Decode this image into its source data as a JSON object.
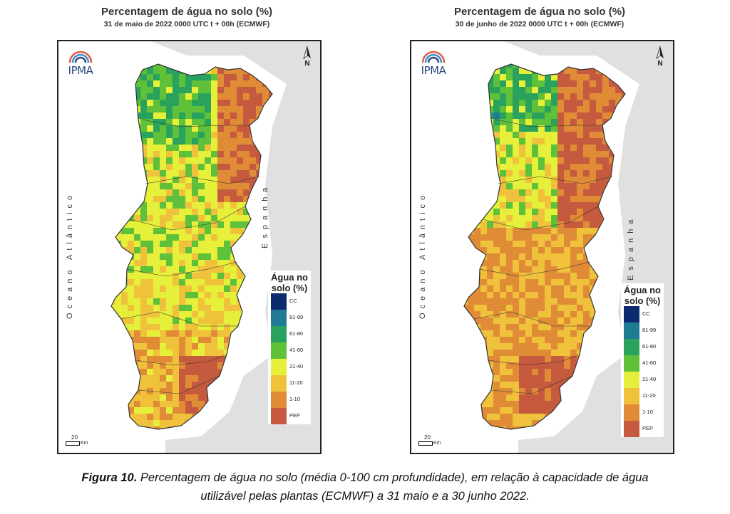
{
  "colors": {
    "cc": "#0c2a6e",
    "c81_99": "#1f7a93",
    "c61_80": "#28a25d",
    "c41_60": "#5fc03a",
    "c21_40": "#e6f03a",
    "c11_20": "#f0c23c",
    "c1_10": "#e08c36",
    "pep": "#c65a3e",
    "spain_land": "#e0e0e0",
    "ocean": "#ffffff"
  },
  "panels": [
    {
      "title": "Percentagem de água no solo (%)",
      "subtitle": "31 de maio de 2022 0000 UTC t + 00h (ECMWF)",
      "logo_text": "IPMA",
      "north": "N",
      "ocean_label": "Oceano Atlântico",
      "spain_label": "Espanha",
      "scale_num": "20",
      "scale_unit": "Km",
      "map_state": "maio"
    },
    {
      "title": "Percentagem de água no solo (%)",
      "subtitle": "30 de junho de 2022 0000 UTC t + 00h (ECMWF)",
      "logo_text": "IPMA",
      "north": "N",
      "ocean_label": "Oceano Atlântico",
      "spain_label": "Espanha",
      "scale_num": "20",
      "scale_unit": "Km",
      "map_state": "junho"
    }
  ],
  "legend": {
    "title_line1": "Água no",
    "title_line2": "solo (%)",
    "items": [
      {
        "label": "CC",
        "color_key": "cc"
      },
      {
        "label": "81-99",
        "color_key": "c81_99"
      },
      {
        "label": "61-80",
        "color_key": "c61_80"
      },
      {
        "label": "41-60",
        "color_key": "c41_60"
      },
      {
        "label": "21-40",
        "color_key": "c21_40"
      },
      {
        "label": "11-20",
        "color_key": "c11_20"
      },
      {
        "label": "1-10",
        "color_key": "c1_10"
      },
      {
        "label": "PEP",
        "color_key": "pep"
      }
    ]
  },
  "caption": {
    "label": "Figura 10.",
    "text": " Percentagem de água no solo (média 0-100 cm profundidade), em relação à capacidade de água",
    "line2": "utilizável pelas plantas (ECMWF) a 31 maio e a 30 junho 2022."
  }
}
